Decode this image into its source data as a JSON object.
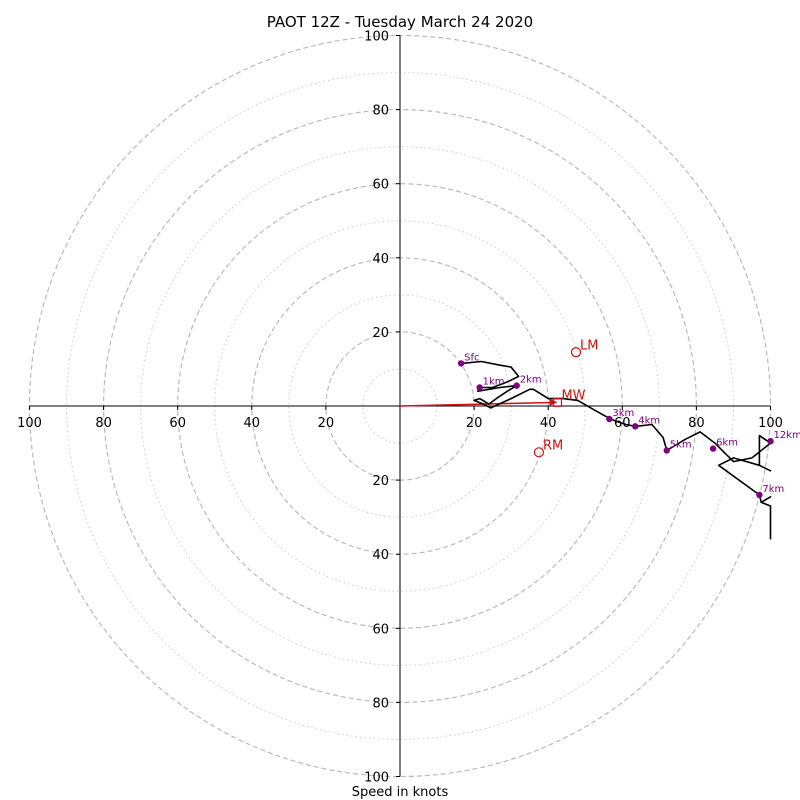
{
  "chart_data": {
    "type": "hodograph",
    "title": "PAOT 12Z - Tuesday March 24 2020",
    "xlabel": "Speed in knots",
    "range": [
      -100,
      100
    ],
    "major_ring_step": 20,
    "minor_ring_step": 10,
    "x_tick_labels": [
      "100",
      "80",
      "60",
      "40",
      "20",
      "20",
      "40",
      "60",
      "80",
      "100"
    ],
    "y_tick_labels": [
      "100",
      "80",
      "60",
      "40",
      "20",
      "20",
      "40",
      "60",
      "80",
      "100"
    ],
    "colors": {
      "trace": "#000000",
      "height_markers": "#800080",
      "storm_motion": "#cc1111",
      "major_grid": "#bbbbbb",
      "minor_grid": "#cccccc"
    },
    "trace": [
      [
        16.5,
        11.5
      ],
      [
        22,
        12
      ],
      [
        27,
        11
      ],
      [
        30,
        10.5
      ],
      [
        32,
        8
      ],
      [
        29,
        6.5
      ],
      [
        25,
        5
      ],
      [
        21.5,
        5
      ],
      [
        21,
        4
      ],
      [
        27,
        5
      ],
      [
        31.5,
        5.5
      ],
      [
        29,
        4
      ],
      [
        26,
        2
      ],
      [
        24,
        0.5
      ],
      [
        21.5,
        2
      ],
      [
        20,
        1.5
      ],
      [
        22.5,
        0.5
      ],
      [
        24.5,
        -0.5
      ],
      [
        30,
        2
      ],
      [
        35,
        4.5
      ],
      [
        36,
        4.5
      ],
      [
        40,
        2
      ],
      [
        44,
        2
      ],
      [
        48,
        1.5
      ],
      [
        51.5,
        -0.5
      ],
      [
        55,
        -2.5
      ],
      [
        58,
        -4
      ],
      [
        61,
        -5
      ],
      [
        63.5,
        -5.5
      ],
      [
        68,
        -5
      ],
      [
        71,
        -8.5
      ],
      [
        72,
        -12
      ],
      [
        77,
        -9
      ],
      [
        81,
        -7
      ],
      [
        85,
        -10
      ],
      [
        88,
        -13
      ],
      [
        90,
        -15
      ],
      [
        95,
        -14
      ],
      [
        100,
        -10
      ],
      [
        97,
        -8
      ],
      [
        97,
        -16
      ],
      [
        100,
        -17.5
      ],
      [
        97,
        -16
      ],
      [
        90,
        -14
      ],
      [
        86,
        -16
      ],
      [
        97,
        -24
      ],
      [
        97.5,
        -26
      ],
      [
        100,
        -24.5
      ],
      [
        97.5,
        -26
      ],
      [
        100,
        -27
      ],
      [
        100,
        -36
      ]
    ],
    "height_markers": [
      {
        "label": "Sfc",
        "u": 16.5,
        "v": 11.5
      },
      {
        "label": "1km",
        "u": 21.5,
        "v": 5
      },
      {
        "label": "2km",
        "u": 31.5,
        "v": 5.5
      },
      {
        "label": "3km",
        "u": 56.5,
        "v": -3.5
      },
      {
        "label": "4km",
        "u": 63.5,
        "v": -5.5
      },
      {
        "label": "5km",
        "u": 72,
        "v": -12
      },
      {
        "label": "6km",
        "u": 84.5,
        "v": -11.5
      },
      {
        "label": "7km",
        "u": 97,
        "v": -24
      },
      {
        "label": "12km",
        "u": 100,
        "v": -9.5
      }
    ],
    "storm_motion": [
      {
        "label": "LM",
        "u": 47.5,
        "v": 14.5,
        "marker": "circle"
      },
      {
        "label": "MW",
        "u": 42.5,
        "v": 1,
        "marker": "square"
      },
      {
        "label": "RM",
        "u": 37.5,
        "v": -12.5,
        "marker": "circle"
      }
    ],
    "mean_wind_vector": {
      "from": [
        0,
        0
      ],
      "to": [
        42.5,
        1
      ]
    }
  }
}
